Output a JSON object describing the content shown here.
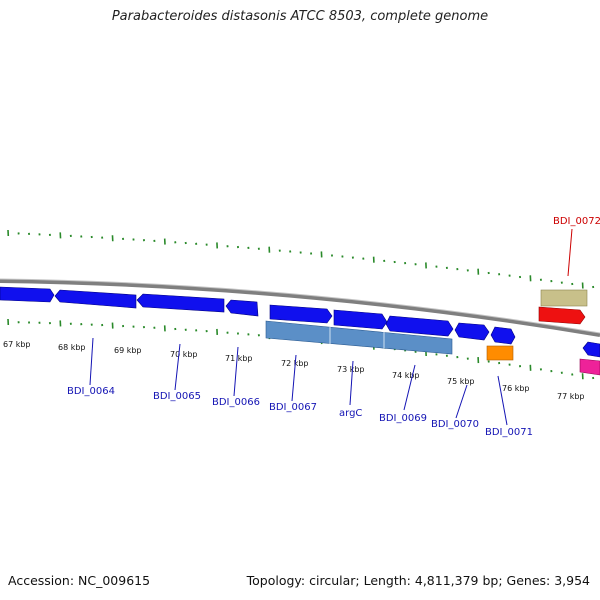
{
  "title": "Parabacteroides distasonis ATCC 8503, complete genome",
  "footer": {
    "accession": "Accession: NC_009615",
    "topology": "Topology: circular; Length: 4,811,379 bp; Genes: 3,954"
  },
  "scale_labels": [
    "67 kbp",
    "68 kbp",
    "69 kbp",
    "70 kbp",
    "71 kbp",
    "72 kbp",
    "73 kbp",
    "74 kbp",
    "75 kbp",
    "76 kbp",
    "77 kbp"
  ],
  "gene_labels": [
    {
      "name": "BDI_0064",
      "color": "#1414b4"
    },
    {
      "name": "BDI_0065",
      "color": "#1414b4"
    },
    {
      "name": "BDI_0066",
      "color": "#1414b4"
    },
    {
      "name": "BDI_0067",
      "color": "#1414b4"
    },
    {
      "name": "argC",
      "color": "#1414b4"
    },
    {
      "name": "BDI_0069",
      "color": "#1414b4"
    },
    {
      "name": "BDI_0070",
      "color": "#1414b4"
    },
    {
      "name": "BDI_0071",
      "color": "#1414b4"
    },
    {
      "name": "BDI_0072",
      "color": "#cc0000"
    }
  ],
  "colors": {
    "backbone": "#8a8a8a",
    "tick": "#2a8a2a",
    "gene_cds": "#1010ee",
    "gene_secondary": "#5b8fc7",
    "gene_orange": "#ff8c00",
    "gene_red": "#ee1111",
    "gene_khaki": "#c8c08a",
    "gene_magenta": "#ee2299"
  }
}
